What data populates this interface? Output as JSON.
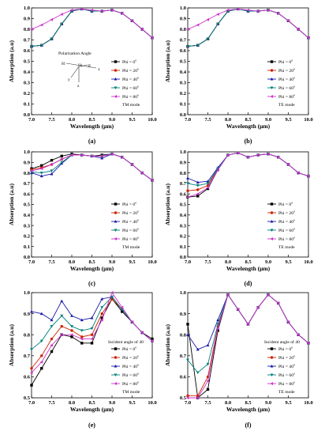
{
  "figure": {
    "x_label": "Wavelength (μm)",
    "y_label": "Absorption (a.u)",
    "legend_labels": [
      "Phi = 0",
      "Phi = 20",
      "Phi = 40",
      "Phi = 60",
      "Phi = 80"
    ],
    "series_colors": [
      "#000000",
      "#cc2200",
      "#1a1aaa",
      "#00807a",
      "#cc33cc"
    ],
    "series_markers": [
      "square",
      "circle",
      "triangle-up",
      "triangle-down",
      "triangle-left"
    ]
  },
  "chart_data": [
    {
      "type": "line",
      "panel_label": "(a)",
      "mode_text": "TM mode",
      "annotation": "Polarization Angle",
      "axis_letters": [
        "H",
        "k",
        "E",
        "x",
        "y",
        "z"
      ],
      "xlim": [
        7.0,
        10.0
      ],
      "ylim": [
        0.0,
        1.0
      ],
      "xticks": [
        "7.0",
        "7.5",
        "8.0",
        "8.5",
        "9.0",
        "9.5",
        "10.0"
      ],
      "yticks": [
        "0.0",
        "0.1",
        "0.2",
        "0.3",
        "0.4",
        "0.5",
        "0.6",
        "0.7",
        "0.8",
        "0.9",
        "1.0"
      ],
      "x": [
        7.0,
        7.25,
        7.5,
        7.75,
        8.0,
        8.25,
        8.5,
        8.75,
        9.0,
        9.25,
        9.5,
        9.75,
        10.0
      ],
      "series": [
        {
          "values": [
            0.64,
            0.65,
            0.71,
            0.85,
            0.97,
            0.99,
            0.97,
            0.97,
            0.98,
            0.95,
            0.88,
            0.8,
            0.72
          ]
        },
        {
          "values": [
            0.64,
            0.65,
            0.71,
            0.85,
            0.97,
            0.99,
            0.97,
            0.97,
            0.98,
            0.95,
            0.88,
            0.8,
            0.72
          ]
        },
        {
          "values": [
            0.64,
            0.65,
            0.71,
            0.85,
            0.97,
            0.99,
            0.97,
            0.97,
            0.98,
            0.95,
            0.88,
            0.8,
            0.72
          ]
        },
        {
          "values": [
            0.64,
            0.65,
            0.71,
            0.85,
            0.97,
            0.99,
            0.97,
            0.97,
            0.98,
            0.95,
            0.88,
            0.8,
            0.72
          ]
        },
        {
          "values": [
            0.8,
            0.84,
            0.89,
            0.94,
            0.98,
            0.99,
            0.98,
            0.97,
            0.98,
            0.95,
            0.88,
            0.8,
            0.72
          ]
        }
      ]
    },
    {
      "type": "line",
      "panel_label": "(b)",
      "mode_text": "TE mode",
      "xlim": [
        7.0,
        10.0
      ],
      "ylim": [
        0.0,
        1.0
      ],
      "xticks": [
        "7.0",
        "7.5",
        "8.0",
        "8.5",
        "9.0",
        "9.5",
        "10.0"
      ],
      "yticks": [
        "0.0",
        "0.1",
        "0.2",
        "0.3",
        "0.4",
        "0.5",
        "0.6",
        "0.7",
        "0.8",
        "0.9",
        "1.0"
      ],
      "x": [
        7.0,
        7.25,
        7.5,
        7.75,
        8.0,
        8.25,
        8.5,
        8.75,
        9.0,
        9.25,
        9.5,
        9.75,
        10.0
      ],
      "series": [
        {
          "values": [
            0.64,
            0.65,
            0.71,
            0.85,
            0.97,
            0.99,
            0.97,
            0.97,
            0.98,
            0.95,
            0.88,
            0.8,
            0.72
          ]
        },
        {
          "values": [
            0.64,
            0.65,
            0.71,
            0.85,
            0.97,
            0.99,
            0.97,
            0.97,
            0.98,
            0.95,
            0.88,
            0.8,
            0.72
          ]
        },
        {
          "values": [
            0.64,
            0.65,
            0.71,
            0.85,
            0.97,
            0.99,
            0.97,
            0.97,
            0.98,
            0.95,
            0.88,
            0.8,
            0.72
          ]
        },
        {
          "values": [
            0.64,
            0.65,
            0.71,
            0.85,
            0.97,
            0.99,
            0.97,
            0.97,
            0.98,
            0.95,
            0.88,
            0.8,
            0.72
          ]
        },
        {
          "values": [
            0.8,
            0.84,
            0.89,
            0.94,
            0.98,
            0.99,
            0.98,
            0.97,
            0.98,
            0.95,
            0.88,
            0.8,
            0.72
          ]
        }
      ]
    },
    {
      "type": "line",
      "panel_label": "(c)",
      "mode_text": "TM mode",
      "xlim": [
        7.0,
        10.0
      ],
      "ylim": [
        0.0,
        1.0
      ],
      "xticks": [
        "7.0",
        "7.5",
        "8.0",
        "8.5",
        "9.0",
        "9.5",
        "10.0"
      ],
      "yticks": [
        "0.0",
        "0.1",
        "0.2",
        "0.3",
        "0.4",
        "0.5",
        "0.6",
        "0.7",
        "0.8",
        "0.9",
        "1.0"
      ],
      "x": [
        7.0,
        7.25,
        7.5,
        7.75,
        8.0,
        8.25,
        8.5,
        8.75,
        9.0,
        9.25,
        9.5,
        9.75,
        10.0
      ],
      "series": [
        {
          "values": [
            0.84,
            0.87,
            0.92,
            0.96,
            0.98,
            0.97,
            0.96,
            0.97,
            0.98,
            0.95,
            0.88,
            0.8,
            0.73
          ]
        },
        {
          "values": [
            0.83,
            0.85,
            0.88,
            0.93,
            0.97,
            0.97,
            0.96,
            0.96,
            0.98,
            0.95,
            0.88,
            0.8,
            0.73
          ]
        },
        {
          "values": [
            0.8,
            0.77,
            0.79,
            0.89,
            0.97,
            0.97,
            0.96,
            0.94,
            0.98,
            0.95,
            0.88,
            0.8,
            0.73
          ]
        },
        {
          "values": [
            0.81,
            0.8,
            0.82,
            0.9,
            0.97,
            0.97,
            0.96,
            0.96,
            0.98,
            0.95,
            0.88,
            0.8,
            0.73
          ]
        },
        {
          "values": [
            0.82,
            0.84,
            0.88,
            0.93,
            0.97,
            0.97,
            0.96,
            0.96,
            0.98,
            0.95,
            0.88,
            0.8,
            0.73
          ]
        }
      ]
    },
    {
      "type": "line",
      "panel_label": "(d)",
      "mode_text": "TE mode",
      "xlim": [
        7.0,
        10.0
      ],
      "ylim": [
        0.0,
        1.0
      ],
      "xticks": [
        "7.0",
        "7.5",
        "8.0",
        "8.5",
        "9.0",
        "9.5",
        "10.0"
      ],
      "yticks": [
        "0.0",
        "0.1",
        "0.2",
        "0.3",
        "0.4",
        "0.5",
        "0.6",
        "0.7",
        "0.8",
        "0.9",
        "1.0"
      ],
      "x": [
        7.0,
        7.25,
        7.5,
        7.75,
        8.0,
        8.25,
        8.5,
        8.75,
        9.0,
        9.25,
        9.5,
        9.75,
        10.0
      ],
      "series": [
        {
          "values": [
            0.57,
            0.58,
            0.65,
            0.83,
            0.97,
            0.99,
            0.95,
            0.97,
            0.98,
            0.95,
            0.88,
            0.8,
            0.77
          ]
        },
        {
          "values": [
            0.63,
            0.64,
            0.68,
            0.84,
            0.97,
            0.99,
            0.95,
            0.97,
            0.98,
            0.95,
            0.88,
            0.8,
            0.77
          ]
        },
        {
          "values": [
            0.75,
            0.71,
            0.72,
            0.85,
            0.97,
            0.99,
            0.95,
            0.97,
            0.98,
            0.95,
            0.88,
            0.8,
            0.77
          ]
        },
        {
          "values": [
            0.7,
            0.68,
            0.7,
            0.84,
            0.97,
            0.99,
            0.95,
            0.97,
            0.98,
            0.95,
            0.88,
            0.8,
            0.77
          ]
        },
        {
          "values": [
            0.57,
            0.6,
            0.66,
            0.83,
            0.97,
            0.99,
            0.95,
            0.97,
            0.98,
            0.95,
            0.88,
            0.8,
            0.77
          ]
        }
      ]
    },
    {
      "type": "line",
      "panel_label": "(e)",
      "mode_text": "TM mode",
      "annotation": "Incident angle of 40",
      "xlim": [
        7.0,
        10.0
      ],
      "ylim": [
        0.5,
        1.0
      ],
      "xticks": [
        "7.0",
        "7.5",
        "8.0",
        "8.5",
        "9.0",
        "9.5",
        "10.0"
      ],
      "yticks": [
        "0.5",
        "0.6",
        "0.7",
        "0.8",
        "0.9",
        "1.0"
      ],
      "x": [
        7.0,
        7.25,
        7.5,
        7.75,
        8.0,
        8.25,
        8.5,
        8.75,
        9.0,
        9.25,
        9.5,
        9.75,
        10.0
      ],
      "series": [
        {
          "values": [
            0.56,
            0.64,
            0.72,
            0.8,
            0.79,
            0.76,
            0.76,
            0.88,
            0.97,
            0.91,
            0.86,
            0.81,
            0.78
          ]
        },
        {
          "values": [
            0.64,
            0.7,
            0.78,
            0.84,
            0.82,
            0.79,
            0.8,
            0.9,
            0.97,
            0.92,
            0.86,
            0.81,
            0.77
          ]
        },
        {
          "values": [
            0.91,
            0.9,
            0.87,
            0.96,
            0.89,
            0.87,
            0.88,
            0.97,
            0.98,
            0.92,
            0.86,
            0.81,
            0.77
          ]
        },
        {
          "values": [
            0.73,
            0.77,
            0.84,
            0.89,
            0.84,
            0.82,
            0.83,
            0.93,
            0.98,
            0.92,
            0.86,
            0.81,
            0.77
          ]
        },
        {
          "values": [
            0.62,
            0.67,
            0.75,
            0.8,
            0.8,
            0.78,
            0.78,
            0.87,
            1.0,
            0.93,
            0.86,
            0.81,
            0.77
          ]
        }
      ]
    },
    {
      "type": "line",
      "panel_label": "(f)",
      "mode_text": "TE mode",
      "annotation": "Incident angle of 40",
      "xlim": [
        7.0,
        10.0
      ],
      "ylim": [
        0.5,
        1.0
      ],
      "xticks": [
        "7.0",
        "7.5",
        "8.0",
        "8.5",
        "9.0",
        "9.5",
        "10.0"
      ],
      "yticks": [
        "0.5",
        "0.6",
        "0.7",
        "0.8",
        "0.9",
        "1.0"
      ],
      "x": [
        7.0,
        7.25,
        7.5,
        7.75,
        8.0,
        8.25,
        8.5,
        8.75,
        9.0,
        9.25,
        9.5,
        9.75,
        10.0
      ],
      "series": [
        {
          "values": [
            0.85,
            0.5,
            0.54,
            0.82,
            0.99,
            0.92,
            0.85,
            0.93,
            0.99,
            0.95,
            0.86,
            0.8,
            0.76
          ]
        },
        {
          "values": [
            0.51,
            0.51,
            0.6,
            0.84,
            0.99,
            0.92,
            0.85,
            0.93,
            0.99,
            0.95,
            0.86,
            0.8,
            0.76
          ]
        },
        {
          "values": [
            0.8,
            0.73,
            0.75,
            0.87,
            0.99,
            0.92,
            0.85,
            0.93,
            0.99,
            0.95,
            0.86,
            0.8,
            0.76
          ]
        },
        {
          "values": [
            0.68,
            0.62,
            0.66,
            0.85,
            0.99,
            0.92,
            0.85,
            0.93,
            0.99,
            0.95,
            0.86,
            0.8,
            0.76
          ]
        },
        {
          "values": [
            0.5,
            0.5,
            0.58,
            0.83,
            0.99,
            0.92,
            0.85,
            0.93,
            0.99,
            0.95,
            0.86,
            0.8,
            0.76
          ]
        }
      ]
    }
  ]
}
